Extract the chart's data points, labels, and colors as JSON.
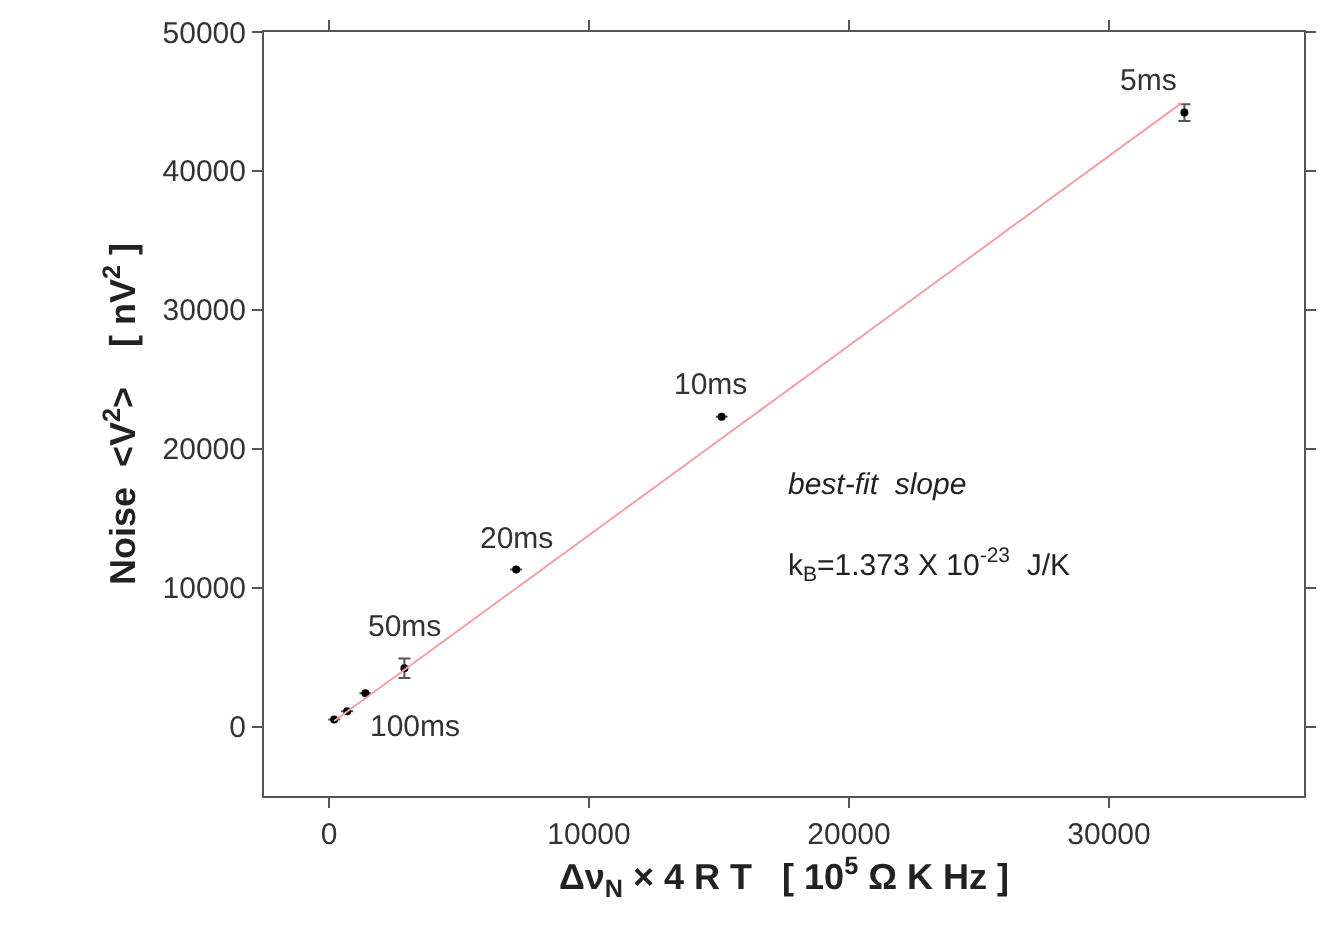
{
  "chart_data": {
    "type": "scatter",
    "xlabel": "Δν$_{N}$ × 4 R T   [ 10$^{5}$ Ω K Hz ]",
    "ylabel": "Noise  <V$^{2}$>    [ nV$^{2}$ ]",
    "xlim": [
      -2500,
      37500
    ],
    "ylim": [
      -5000,
      50000
    ],
    "xticks": [
      0,
      10000,
      20000,
      30000
    ],
    "yticks": [
      0,
      10000,
      20000,
      30000,
      40000,
      50000
    ],
    "grid": false,
    "series": [
      {
        "color": "#000000",
        "marker": "circle",
        "x": [
          200,
          700,
          1400,
          2900,
          7200,
          15100,
          32900
        ],
        "values": [
          500,
          1100,
          2400,
          4200,
          11300,
          22300,
          44200
        ],
        "errors": [
          null,
          null,
          null,
          700,
          null,
          null,
          600
        ]
      },
      {
        "type": "line",
        "color": "#f4a0a8",
        "marker": "none",
        "x": [
          200,
          32800
        ],
        "values": [
          400,
          44900
        ],
        "line_style": "solid"
      }
    ],
    "annotations": [
      {
        "text": "5ms",
        "x": 32900,
        "y": 44200
      },
      {
        "text": "10ms",
        "x": 15100,
        "y": 22300
      },
      {
        "text": "20ms",
        "x": 7200,
        "y": 11300
      },
      {
        "text": "50ms",
        "x": 2900,
        "y": 4200
      },
      {
        "text": "100ms",
        "x": 1400,
        "y": 2400
      },
      "best-fit  slope",
      "k$_{B}$=1.373 X 10$^{-23}$  J/K"
    ]
  }
}
